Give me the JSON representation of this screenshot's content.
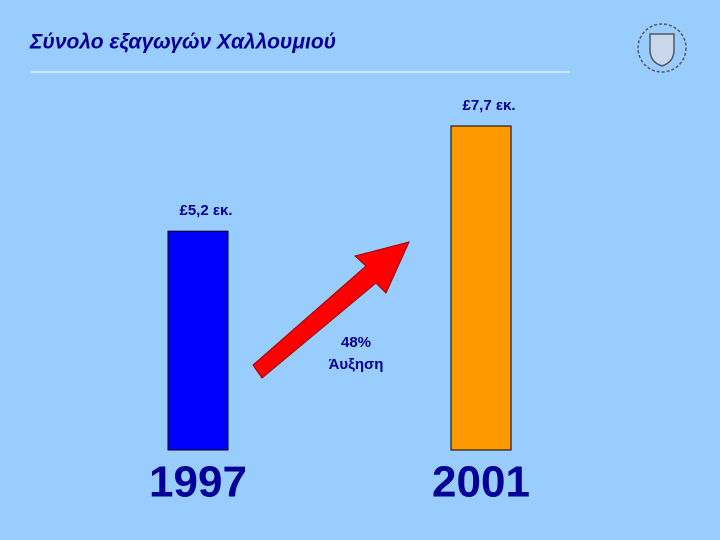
{
  "chart_data": {
    "type": "bar",
    "title": "Σύνολο εξαγωγών Χαλλουμιού",
    "categories": [
      "1997",
      "2001"
    ],
    "values": [
      5.2,
      7.7
    ],
    "value_labels": [
      "£5,2 εκ.",
      "£7,7 εκ."
    ],
    "colors": [
      "#0000ff",
      "#ff9900"
    ],
    "annotations": [
      "48%",
      "Άυξηση"
    ]
  }
}
